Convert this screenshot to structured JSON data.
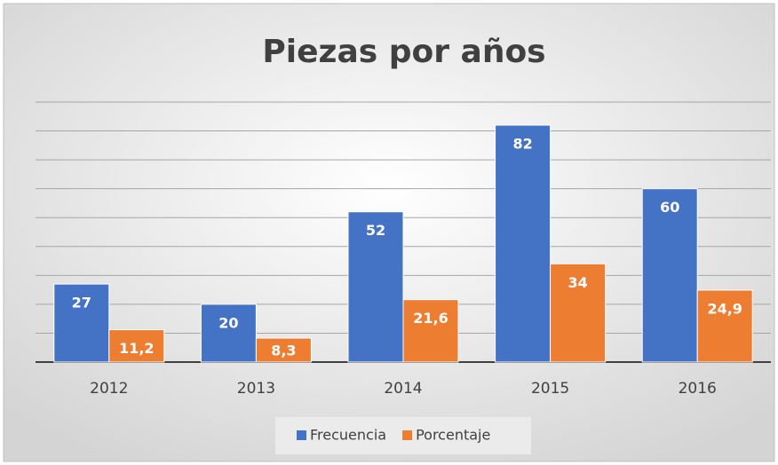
{
  "chart_data": {
    "type": "bar",
    "title": "Piezas por años",
    "categories": [
      "2012",
      "2013",
      "2014",
      "2015",
      "2016"
    ],
    "series": [
      {
        "name": "Frecuencia",
        "color": "#4472c4",
        "values": [
          27,
          20,
          52,
          82,
          60
        ]
      },
      {
        "name": "Porcentaje",
        "color": "#ed7d31",
        "values": [
          11.2,
          8.3,
          21.6,
          34,
          24.9
        ],
        "value_labels": [
          "11,2",
          "8,3",
          "21,6",
          "34",
          "24,9"
        ]
      }
    ],
    "ylim": [
      0,
      90
    ],
    "yticks": [
      0,
      10,
      20,
      30,
      40,
      50,
      60,
      70,
      80,
      90
    ],
    "grid": true,
    "legend": "bottom"
  }
}
